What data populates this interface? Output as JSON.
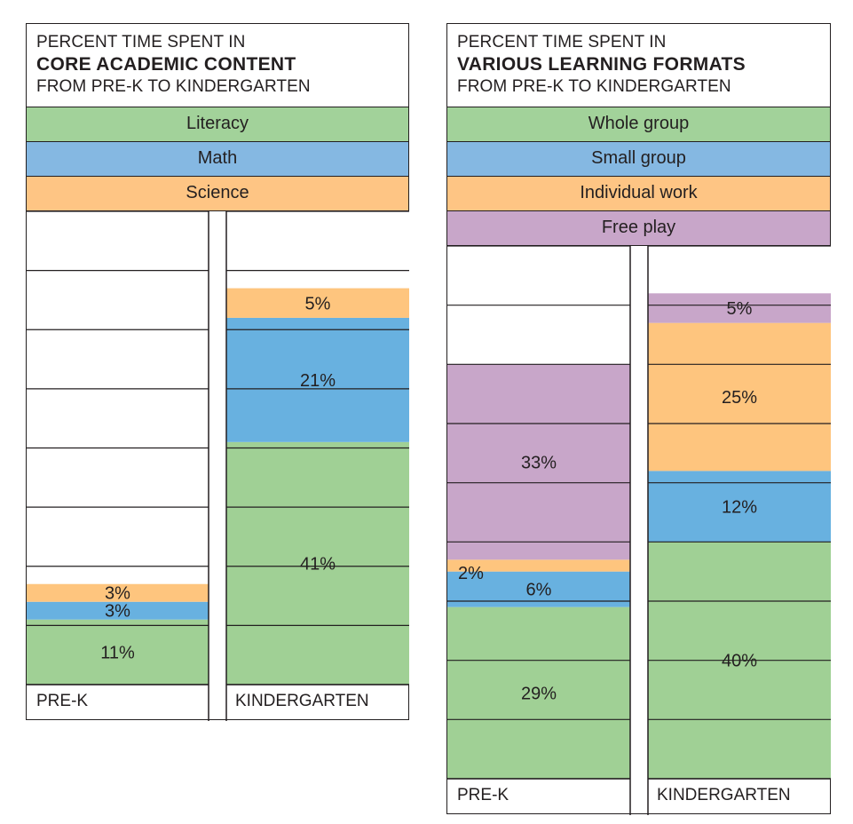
{
  "charts": [
    {
      "id": "core-academic",
      "title_line1": "PERCENT TIME SPENT IN",
      "title_line2": "CORE ACADEMIC CONTENT",
      "title_line3": "FROM PRE-K TO KINDERGARTEN",
      "legend": [
        {
          "label": "Literacy",
          "color": "#a2d29a"
        },
        {
          "label": "Math",
          "color": "#85b8e2"
        },
        {
          "label": "Science",
          "color": "#fec584"
        }
      ]
    },
    {
      "id": "learning-formats",
      "title_line1": "PERCENT TIME SPENT IN",
      "title_line2": "VARIOUS LEARNING FORMATS",
      "title_line3": "FROM PRE-K TO KINDERGARTEN",
      "legend": [
        {
          "label": "Whole group",
          "color": "#a2d29a"
        },
        {
          "label": "Small group",
          "color": "#85b8e2"
        },
        {
          "label": "Individual work",
          "color": "#fec584"
        },
        {
          "label": "Free play",
          "color": "#c8a6c9"
        }
      ]
    }
  ],
  "chart_data": [
    {
      "type": "bar",
      "stacked": true,
      "title": "PERCENT TIME SPENT IN CORE ACADEMIC CONTENT FROM PRE-K TO KINDERGARTEN",
      "categories": [
        "PRE-K",
        "KINDERGARTEN"
      ],
      "series": [
        {
          "name": "Literacy",
          "color": "#a0d095",
          "values": [
            11,
            41
          ],
          "labels": [
            "11%",
            "41%"
          ]
        },
        {
          "name": "Math",
          "color": "#68b1e0",
          "values": [
            3,
            21
          ],
          "labels": [
            "3%",
            "21%"
          ]
        },
        {
          "name": "Science",
          "color": "#fec57e",
          "values": [
            3,
            5
          ],
          "labels": [
            "3%",
            "5%"
          ]
        }
      ],
      "ylim": [
        0,
        80
      ],
      "grid": true
    },
    {
      "type": "bar",
      "stacked": true,
      "title": "PERCENT TIME SPENT IN VARIOUS LEARNING FORMATS FROM PRE-K TO KINDERGARTEN",
      "categories": [
        "PRE-K",
        "KINDERGARTEN"
      ],
      "series": [
        {
          "name": "Whole group",
          "color": "#a0d095",
          "values": [
            29,
            40
          ],
          "labels": [
            "29%",
            "40%"
          ]
        },
        {
          "name": "Small group",
          "color": "#68b1e0",
          "values": [
            6,
            12
          ],
          "labels": [
            "6%",
            "12%"
          ]
        },
        {
          "name": "Individual work",
          "color": "#fec57e",
          "values": [
            2,
            25
          ],
          "labels": [
            "2%",
            "25%"
          ]
        },
        {
          "name": "Free play",
          "color": "#c8a6c9",
          "values": [
            33,
            5
          ],
          "labels": [
            "33%",
            "5%"
          ]
        }
      ],
      "ylim": [
        0,
        90
      ],
      "grid": true
    }
  ]
}
